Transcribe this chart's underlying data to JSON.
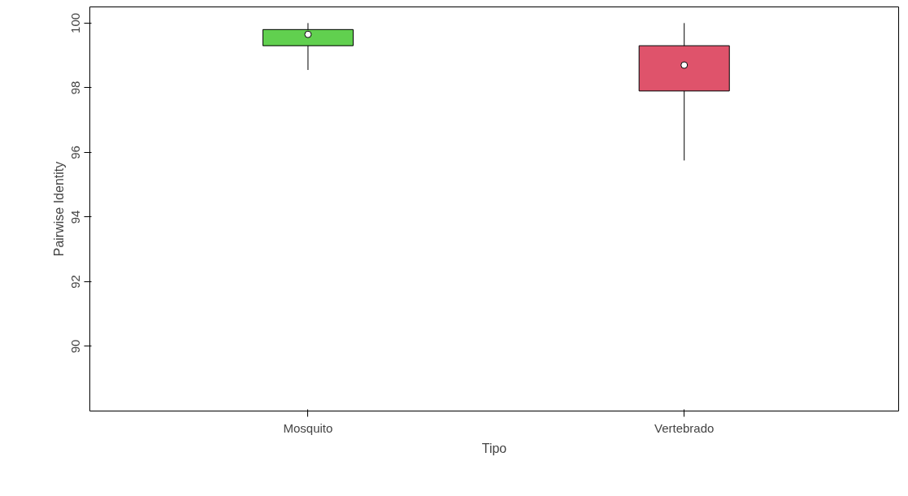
{
  "chart_data": {
    "type": "box",
    "xlabel": "Tipo",
    "ylabel": "Pairwise Identity",
    "categories": [
      "Mosquito",
      "Vertebrado"
    ],
    "colors": [
      "#61d04f",
      "#df536b"
    ],
    "boxes": [
      {
        "low": 98.55,
        "q1": 99.3,
        "median": 99.65,
        "q3": 99.8,
        "high": 100
      },
      {
        "low": 95.75,
        "q1": 97.9,
        "median": 98.7,
        "q3": 99.3,
        "high": 100
      }
    ],
    "ylim": [
      88.0,
      100.5
    ],
    "yticks": [
      90,
      92,
      94,
      96,
      98,
      100
    ]
  }
}
